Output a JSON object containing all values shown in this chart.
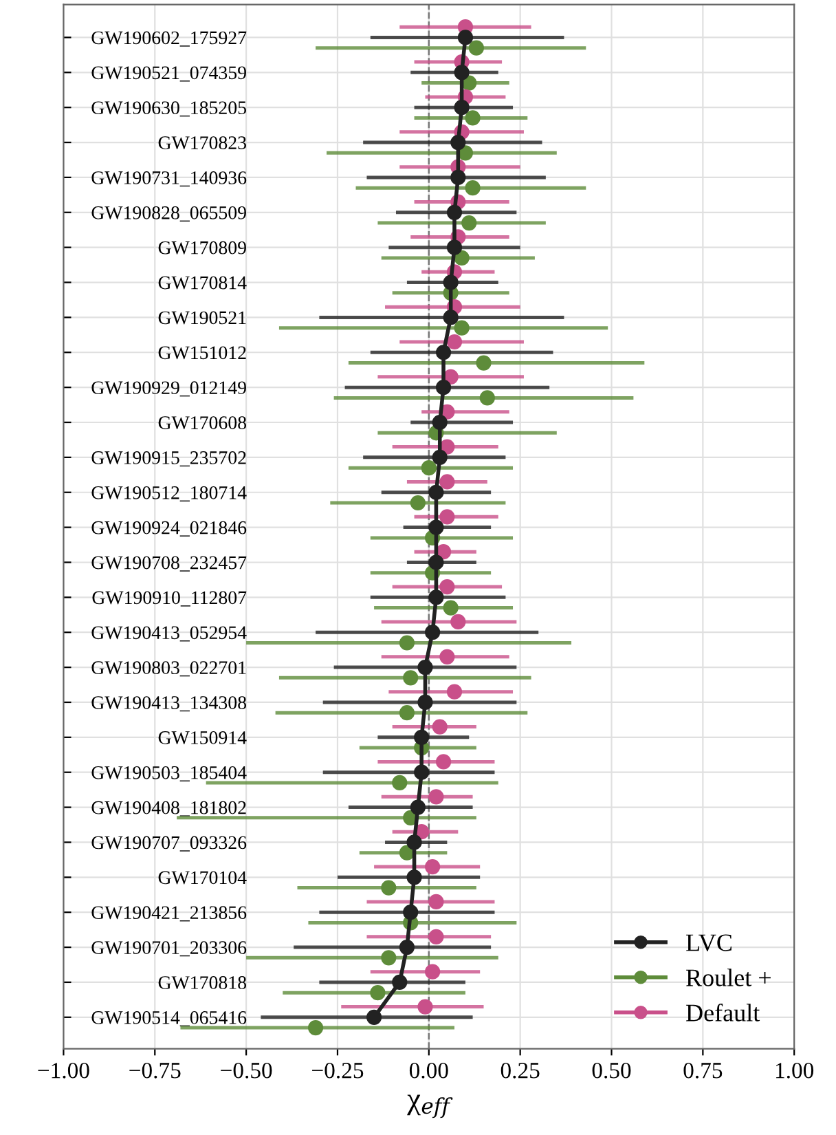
{
  "chart_data": {
    "type": "scatter",
    "orientation": "horizontal",
    "xlabel": "χ$_{eff}$",
    "categories": [
      "GW190602_175927",
      "GW190521_074359",
      "GW190630_185205",
      "GW170823",
      "GW190731_140936",
      "GW190828_065509",
      "GW170809",
      "GW170814",
      "GW190521",
      "GW151012",
      "GW190929_012149",
      "GW170608",
      "GW190915_235702",
      "GW190512_180714",
      "GW190924_021846",
      "GW190708_232457",
      "GW190910_112807",
      "GW190413_052954",
      "GW190803_022701",
      "GW190413_134308",
      "GW150914",
      "GW190503_185404",
      "GW190408_181802",
      "GW190707_093326",
      "GW170104",
      "GW190421_213856",
      "GW190701_203306",
      "GW170818",
      "GW190514_065416"
    ],
    "series": [
      {
        "name": "LVC",
        "type": "line",
        "color": "#222222",
        "values": [
          0.1,
          0.09,
          0.09,
          0.08,
          0.08,
          0.07,
          0.07,
          0.06,
          0.06,
          0.04,
          0.04,
          0.03,
          0.03,
          0.02,
          0.02,
          0.02,
          0.02,
          0.01,
          -0.01,
          -0.01,
          -0.02,
          -0.02,
          -0.03,
          -0.04,
          -0.04,
          -0.05,
          -0.06,
          -0.08,
          -0.15
        ],
        "errors": [
          [
            -0.16,
            0.37
          ],
          [
            -0.05,
            0.19
          ],
          [
            -0.04,
            0.23
          ],
          [
            -0.18,
            0.31
          ],
          [
            -0.17,
            0.32
          ],
          [
            -0.09,
            0.24
          ],
          [
            -0.11,
            0.25
          ],
          [
            -0.06,
            0.19
          ],
          [
            -0.3,
            0.37
          ],
          [
            -0.16,
            0.34
          ],
          [
            -0.23,
            0.33
          ],
          [
            -0.05,
            0.23
          ],
          [
            -0.18,
            0.21
          ],
          [
            -0.13,
            0.17
          ],
          [
            -0.07,
            0.17
          ],
          [
            -0.06,
            0.13
          ],
          [
            -0.16,
            0.21
          ],
          [
            -0.31,
            0.3
          ],
          [
            -0.26,
            0.24
          ],
          [
            -0.29,
            0.24
          ],
          [
            -0.14,
            0.11
          ],
          [
            -0.29,
            0.18
          ],
          [
            -0.22,
            0.12
          ],
          [
            -0.12,
            0.05
          ],
          [
            -0.25,
            0.14
          ],
          [
            -0.3,
            0.18
          ],
          [
            -0.37,
            0.17
          ],
          [
            -0.3,
            0.1
          ],
          [
            -0.46,
            0.12
          ]
        ]
      },
      {
        "name": "Roulet +",
        "color": "#5e8c3a",
        "values": [
          0.13,
          0.11,
          0.12,
          0.1,
          0.12,
          0.11,
          0.09,
          0.06,
          0.09,
          0.15,
          0.16,
          0.02,
          0.0,
          -0.03,
          0.01,
          0.01,
          0.06,
          -0.06,
          -0.05,
          -0.06,
          -0.02,
          -0.08,
          -0.05,
          -0.06,
          -0.11,
          -0.05,
          -0.11,
          -0.14,
          -0.31
        ],
        "errors": [
          [
            -0.31,
            0.43
          ],
          [
            -0.02,
            0.22
          ],
          [
            -0.04,
            0.27
          ],
          [
            -0.28,
            0.35
          ],
          [
            -0.2,
            0.43
          ],
          [
            -0.14,
            0.32
          ],
          [
            -0.13,
            0.29
          ],
          [
            -0.1,
            0.22
          ],
          [
            -0.41,
            0.49
          ],
          [
            -0.22,
            0.59
          ],
          [
            -0.26,
            0.56
          ],
          [
            -0.14,
            0.35
          ],
          [
            -0.22,
            0.23
          ],
          [
            -0.27,
            0.21
          ],
          [
            -0.16,
            0.23
          ],
          [
            -0.16,
            0.17
          ],
          [
            -0.15,
            0.23
          ],
          [
            -0.5,
            0.39
          ],
          [
            -0.41,
            0.28
          ],
          [
            -0.42,
            0.27
          ],
          [
            -0.19,
            0.13
          ],
          [
            -0.61,
            0.19
          ],
          [
            -0.69,
            0.13
          ],
          [
            -0.19,
            0.05
          ],
          [
            -0.36,
            0.13
          ],
          [
            -0.33,
            0.24
          ],
          [
            -0.5,
            0.19
          ],
          [
            -0.4,
            0.1
          ],
          [
            -0.68,
            0.07
          ]
        ]
      },
      {
        "name": "Default",
        "color": "#c9508a",
        "values": [
          0.1,
          0.09,
          0.1,
          0.09,
          0.08,
          0.08,
          0.08,
          0.07,
          0.07,
          0.07,
          0.06,
          0.05,
          0.05,
          0.05,
          0.05,
          0.04,
          0.05,
          0.08,
          0.05,
          0.07,
          0.03,
          0.04,
          0.02,
          -0.02,
          0.01,
          0.02,
          0.02,
          0.01,
          -0.01
        ],
        "errors": [
          [
            -0.08,
            0.28
          ],
          [
            -0.04,
            0.2
          ],
          [
            -0.01,
            0.21
          ],
          [
            -0.08,
            0.26
          ],
          [
            -0.08,
            0.25
          ],
          [
            -0.04,
            0.22
          ],
          [
            -0.05,
            0.22
          ],
          [
            -0.02,
            0.18
          ],
          [
            -0.12,
            0.25
          ],
          [
            -0.08,
            0.26
          ],
          [
            -0.14,
            0.26
          ],
          [
            -0.02,
            0.22
          ],
          [
            -0.1,
            0.19
          ],
          [
            -0.06,
            0.16
          ],
          [
            -0.04,
            0.19
          ],
          [
            -0.04,
            0.13
          ],
          [
            -0.1,
            0.2
          ],
          [
            -0.13,
            0.24
          ],
          [
            -0.13,
            0.22
          ],
          [
            -0.11,
            0.23
          ],
          [
            -0.1,
            0.13
          ],
          [
            -0.14,
            0.18
          ],
          [
            -0.13,
            0.12
          ],
          [
            -0.1,
            0.08
          ],
          [
            -0.15,
            0.14
          ],
          [
            -0.17,
            0.18
          ],
          [
            -0.17,
            0.17
          ],
          [
            -0.16,
            0.14
          ],
          [
            -0.24,
            0.15
          ]
        ]
      }
    ],
    "xlim": [
      -1.0,
      1.0
    ],
    "xticks": [
      {
        "value": -1.0,
        "label": "−1.00"
      },
      {
        "value": -0.75,
        "label": "−0.75"
      },
      {
        "value": -0.5,
        "label": "−0.50"
      },
      {
        "value": -0.25,
        "label": "−0.25"
      },
      {
        "value": 0.0,
        "label": "0.00"
      },
      {
        "value": 0.25,
        "label": "0.25"
      },
      {
        "value": 0.5,
        "label": "0.50"
      },
      {
        "value": 0.75,
        "label": "0.75"
      },
      {
        "value": 1.0,
        "label": "1.00"
      }
    ],
    "ref_lines": [
      {
        "axis": "x",
        "value": 0.0,
        "color": "#777777",
        "line_style": "dashed"
      }
    ],
    "grid": true,
    "legend": "bottom right",
    "marker": "circle"
  }
}
